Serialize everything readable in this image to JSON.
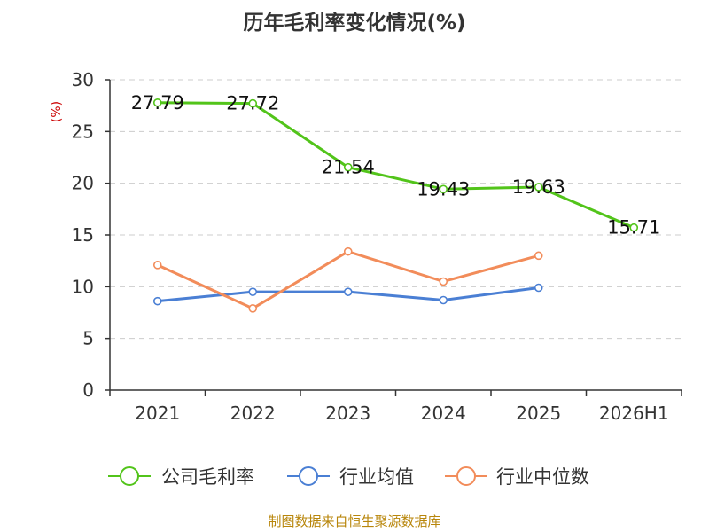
{
  "chart_data": {
    "type": "line",
    "title": "历年毛利率变化情况(%)",
    "unit_label": "(%)",
    "xlabel": "",
    "ylabel": "",
    "categories": [
      "2021",
      "2022",
      "2023",
      "2024",
      "2025",
      "2026H1"
    ],
    "ylim": [
      0,
      30
    ],
    "yticks": [
      0,
      5,
      10,
      15,
      20,
      25,
      30
    ],
    "grid": true,
    "legend_position": "bottom",
    "series": [
      {
        "name": "公司毛利率",
        "color": "#52c41a",
        "values": [
          27.79,
          27.72,
          21.54,
          19.43,
          19.63,
          15.71
        ],
        "labels": [
          "27.79",
          "27.72",
          "21.54",
          "19.43",
          "19.63",
          "15.71"
        ]
      },
      {
        "name": "行业均值",
        "color": "#4a7fd4",
        "values": [
          8.6,
          9.5,
          9.5,
          8.7,
          9.9,
          null
        ]
      },
      {
        "name": "行业中位数",
        "color": "#f28c5a",
        "values": [
          12.1,
          7.9,
          13.4,
          10.5,
          13.0,
          null
        ]
      }
    ]
  },
  "source": "制图数据来自恒生聚源数据库"
}
